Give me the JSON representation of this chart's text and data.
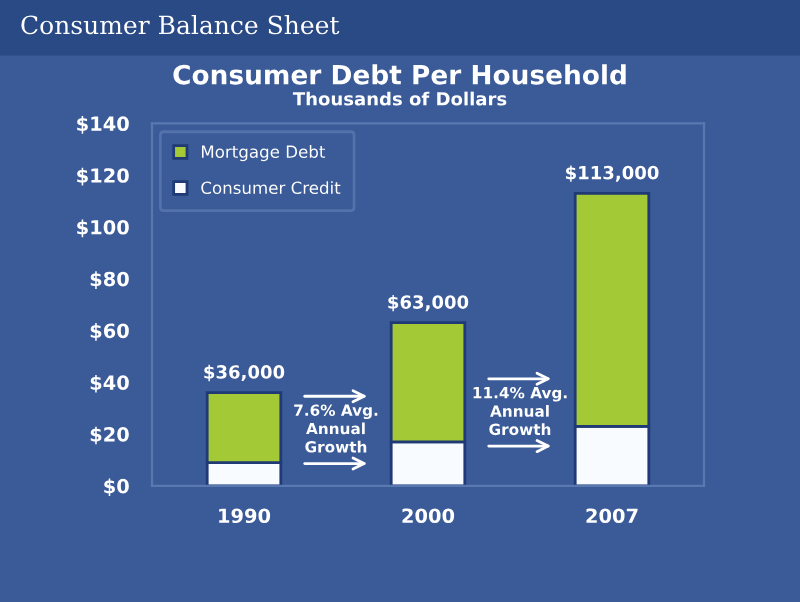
{
  "chart_data": {
    "type": "bar",
    "title": "Consumer Debt Per Household",
    "subtitle": "Thousands of Dollars",
    "annotations": [
      "Consumer Balance Sheet",
      "7.6% Avg.\nAnnual\nGrowth",
      "11.4% Avg.\nAnnual\nGrowth"
    ],
    "categories": [
      "1990",
      "2000",
      "2007"
    ],
    "stacked": true,
    "series": [
      {
        "name": "Consumer Credit",
        "color": "#f8fbff",
        "values": [
          9,
          17,
          23
        ]
      },
      {
        "name": "Mortgage Debt",
        "color": "#a4c936",
        "values": [
          27,
          46,
          90
        ]
      }
    ],
    "totals": [
      "$36,000",
      "$63,000",
      "$113,000"
    ],
    "ylim": [
      0,
      140
    ],
    "yticks": [
      {
        "value": 0,
        "label": "$0"
      },
      {
        "value": 20,
        "label": "$20"
      },
      {
        "value": 40,
        "label": "$40"
      },
      {
        "value": 60,
        "label": "$60"
      },
      {
        "value": 80,
        "label": "$80"
      },
      {
        "value": 100,
        "label": "$100"
      },
      {
        "value": 120,
        "label": "$120"
      },
      {
        "value": 140,
        "label": "$140"
      }
    ],
    "legend": "top left",
    "grid": false
  }
}
